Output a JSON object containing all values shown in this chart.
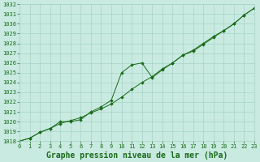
{
  "title": "Graphe pression niveau de la mer (hPa)",
  "x_values": [
    0,
    1,
    2,
    3,
    4,
    5,
    6,
    7,
    8,
    9,
    10,
    11,
    12,
    13,
    14,
    15,
    16,
    17,
    18,
    19,
    20,
    21,
    22,
    23
  ],
  "series1": [
    1018.0,
    1018.3,
    1018.9,
    1019.3,
    1019.8,
    1020.1,
    1020.4,
    1020.9,
    1021.3,
    1021.8,
    1022.5,
    1023.3,
    1024.0,
    1024.6,
    1025.4,
    1026.0,
    1026.8,
    1027.2,
    1027.9,
    1028.6,
    1029.3,
    1030.0,
    1030.9,
    1031.6
  ],
  "series2": [
    1018.0,
    1018.3,
    1018.9,
    1019.3,
    1020.0,
    1020.0,
    1020.2,
    1021.0,
    1021.5,
    1022.2,
    1025.0,
    1025.8,
    1026.0,
    1024.5,
    1025.3,
    1026.0,
    1026.8,
    1027.3,
    1028.0,
    1028.7,
    1029.3,
    1030.0,
    1030.9,
    1031.6
  ],
  "ylim": [
    1018,
    1032
  ],
  "xlim": [
    0,
    23
  ],
  "yticks": [
    1018,
    1019,
    1020,
    1021,
    1022,
    1023,
    1024,
    1025,
    1026,
    1027,
    1028,
    1029,
    1030,
    1031,
    1032
  ],
  "xticks": [
    0,
    1,
    2,
    3,
    4,
    5,
    6,
    7,
    8,
    9,
    10,
    11,
    12,
    13,
    14,
    15,
    16,
    17,
    18,
    19,
    20,
    21,
    22,
    23
  ],
  "line_color": "#1a6b1a",
  "bg_color": "#c8eae0",
  "grid_color": "#a8d4c8",
  "text_color": "#1a6b1a",
  "title_fontsize": 7.0,
  "tick_fontsize": 5.0
}
